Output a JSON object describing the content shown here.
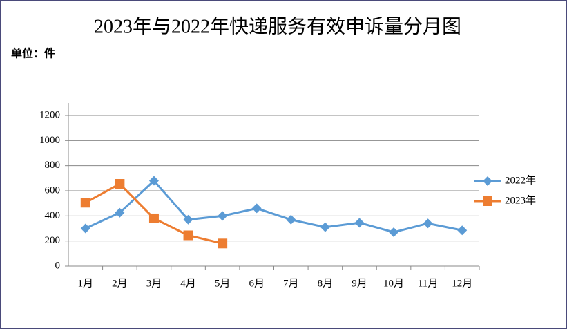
{
  "chart_data": {
    "type": "line",
    "title": "2023年与2022年快递服务有效申诉量分月图",
    "subtitle": "单位：件",
    "categories": [
      "1月",
      "2月",
      "3月",
      "4月",
      "5月",
      "6月",
      "7月",
      "8月",
      "9月",
      "10月",
      "11月",
      "12月"
    ],
    "series": [
      {
        "name": "2022年",
        "color": "#5b9bd5",
        "marker": "diamond",
        "values": [
          300,
          425,
          680,
          370,
          400,
          460,
          370,
          310,
          345,
          270,
          340,
          285
        ]
      },
      {
        "name": "2023年",
        "color": "#ed7d31",
        "marker": "square",
        "values": [
          505,
          655,
          380,
          245,
          180,
          null,
          null,
          null,
          null,
          null,
          null,
          null
        ]
      }
    ],
    "ylim": [
      0,
      1200
    ],
    "yticks": [
      0,
      200,
      400,
      600,
      800,
      1000,
      1200
    ],
    "grid": true,
    "legend": "right"
  }
}
